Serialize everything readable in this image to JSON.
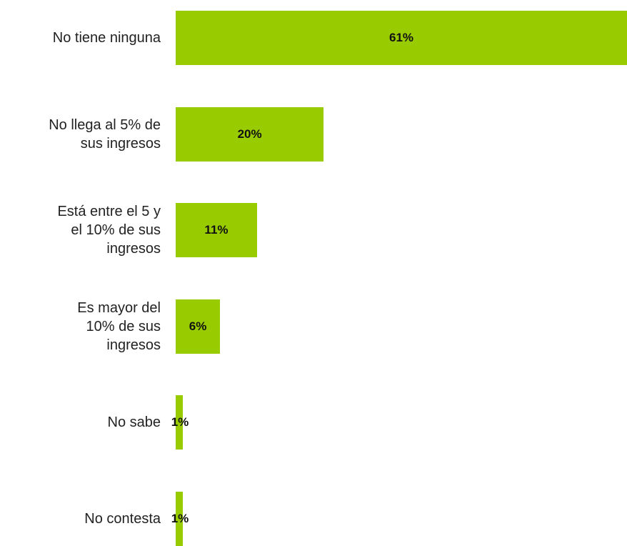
{
  "chart_data": {
    "type": "bar",
    "orientation": "horizontal",
    "categories": [
      "No tiene ninguna",
      "No llega al 5% de\nsus ingresos",
      "Está entre el 5 y\nel 10% de sus\ningresos",
      "Es mayor del\n10% de sus\ningresos",
      "No sabe",
      "No contesta"
    ],
    "values": [
      61,
      20,
      11,
      6,
      1,
      1
    ],
    "value_labels": [
      "61%",
      "20%",
      "11%",
      "6%",
      "1%",
      "1%"
    ],
    "color": "#99cc00"
  }
}
